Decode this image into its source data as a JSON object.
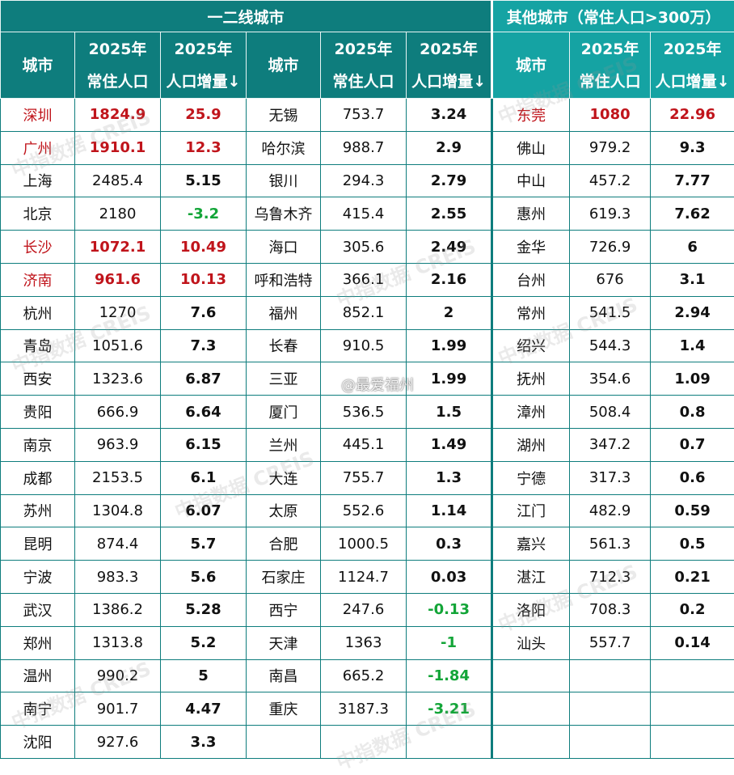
{
  "header": {
    "group_tier12": "一二线城市",
    "group_other": "其他城市（常住人口>300万）",
    "col_city": "城市",
    "col_pop_line1": "2025年",
    "col_pop_line2": "常住人口",
    "col_inc_line1": "2025年",
    "col_inc_line2": "人口增量↓"
  },
  "watermark": {
    "text": "中指数据 CREIS"
  },
  "weibo_tag": "@最爱福州",
  "tier12_col1": [
    {
      "city": "深圳",
      "pop": "1824.9",
      "inc": "25.9",
      "style": "red"
    },
    {
      "city": "广州",
      "pop": "1910.1",
      "inc": "12.3",
      "style": "red"
    },
    {
      "city": "上海",
      "pop": "2485.4",
      "inc": "5.15",
      "style": ""
    },
    {
      "city": "北京",
      "pop": "2180",
      "inc": "-3.2",
      "style": "neg"
    },
    {
      "city": "长沙",
      "pop": "1072.1",
      "inc": "10.49",
      "style": "red"
    },
    {
      "city": "济南",
      "pop": "961.6",
      "inc": "10.13",
      "style": "red"
    },
    {
      "city": "杭州",
      "pop": "1270",
      "inc": "7.6",
      "style": ""
    },
    {
      "city": "青岛",
      "pop": "1051.6",
      "inc": "7.3",
      "style": ""
    },
    {
      "city": "西安",
      "pop": "1323.6",
      "inc": "6.87",
      "style": ""
    },
    {
      "city": "贵阳",
      "pop": "666.9",
      "inc": "6.64",
      "style": ""
    },
    {
      "city": "南京",
      "pop": "963.9",
      "inc": "6.15",
      "style": ""
    },
    {
      "city": "成都",
      "pop": "2153.5",
      "inc": "6.1",
      "style": ""
    },
    {
      "city": "苏州",
      "pop": "1304.8",
      "inc": "6.07",
      "style": ""
    },
    {
      "city": "昆明",
      "pop": "874.4",
      "inc": "5.7",
      "style": ""
    },
    {
      "city": "宁波",
      "pop": "983.3",
      "inc": "5.6",
      "style": ""
    },
    {
      "city": "武汉",
      "pop": "1386.2",
      "inc": "5.28",
      "style": ""
    },
    {
      "city": "郑州",
      "pop": "1313.8",
      "inc": "5.2",
      "style": ""
    },
    {
      "city": "温州",
      "pop": "990.2",
      "inc": "5",
      "style": ""
    },
    {
      "city": "南宁",
      "pop": "901.7",
      "inc": "4.47",
      "style": ""
    },
    {
      "city": "沈阳",
      "pop": "927.6",
      "inc": "3.3",
      "style": ""
    }
  ],
  "tier12_col2": [
    {
      "city": "无锡",
      "pop": "753.7",
      "inc": "3.24",
      "style": ""
    },
    {
      "city": "哈尔滨",
      "pop": "988.7",
      "inc": "2.9",
      "style": ""
    },
    {
      "city": "银川",
      "pop": "294.3",
      "inc": "2.79",
      "style": ""
    },
    {
      "city": "乌鲁木齐",
      "pop": "415.4",
      "inc": "2.55",
      "style": ""
    },
    {
      "city": "海口",
      "pop": "305.6",
      "inc": "2.49",
      "style": ""
    },
    {
      "city": "呼和浩特",
      "pop": "366.1",
      "inc": "2.16",
      "style": ""
    },
    {
      "city": "福州",
      "pop": "852.1",
      "inc": "2",
      "style": ""
    },
    {
      "city": "长春",
      "pop": "910.5",
      "inc": "1.99",
      "style": ""
    },
    {
      "city": "三亚",
      "pop": "",
      "inc": "1.99",
      "style": ""
    },
    {
      "city": "厦门",
      "pop": "536.5",
      "inc": "1.5",
      "style": ""
    },
    {
      "city": "兰州",
      "pop": "445.1",
      "inc": "1.49",
      "style": ""
    },
    {
      "city": "大连",
      "pop": "755.7",
      "inc": "1.3",
      "style": ""
    },
    {
      "city": "太原",
      "pop": "552.6",
      "inc": "1.14",
      "style": ""
    },
    {
      "city": "合肥",
      "pop": "1000.5",
      "inc": "0.3",
      "style": ""
    },
    {
      "city": "石家庄",
      "pop": "1124.7",
      "inc": "0.03",
      "style": ""
    },
    {
      "city": "西宁",
      "pop": "247.6",
      "inc": "-0.13",
      "style": "neg"
    },
    {
      "city": "天津",
      "pop": "1363",
      "inc": "-1",
      "style": "neg"
    },
    {
      "city": "南昌",
      "pop": "665.2",
      "inc": "-1.84",
      "style": "neg"
    },
    {
      "city": "重庆",
      "pop": "3187.3",
      "inc": "-3.21",
      "style": "neg"
    },
    {
      "city": "",
      "pop": "",
      "inc": "",
      "style": ""
    }
  ],
  "other_col": [
    {
      "city": "东莞",
      "pop": "1080",
      "inc": "22.96",
      "style": "red"
    },
    {
      "city": "佛山",
      "pop": "979.2",
      "inc": "9.3",
      "style": ""
    },
    {
      "city": "中山",
      "pop": "457.2",
      "inc": "7.77",
      "style": ""
    },
    {
      "city": "惠州",
      "pop": "619.3",
      "inc": "7.62",
      "style": ""
    },
    {
      "city": "金华",
      "pop": "726.9",
      "inc": "6",
      "style": ""
    },
    {
      "city": "台州",
      "pop": "676",
      "inc": "3.1",
      "style": ""
    },
    {
      "city": "常州",
      "pop": "541.5",
      "inc": "2.94",
      "style": ""
    },
    {
      "city": "绍兴",
      "pop": "544.3",
      "inc": "1.4",
      "style": ""
    },
    {
      "city": "抚州",
      "pop": "354.6",
      "inc": "1.09",
      "style": ""
    },
    {
      "city": "漳州",
      "pop": "508.4",
      "inc": "0.8",
      "style": ""
    },
    {
      "city": "湖州",
      "pop": "347.2",
      "inc": "0.7",
      "style": ""
    },
    {
      "city": "宁德",
      "pop": "317.3",
      "inc": "0.6",
      "style": ""
    },
    {
      "city": "江门",
      "pop": "482.9",
      "inc": "0.59",
      "style": ""
    },
    {
      "city": "嘉兴",
      "pop": "561.3",
      "inc": "0.5",
      "style": ""
    },
    {
      "city": "湛江",
      "pop": "712.3",
      "inc": "0.21",
      "style": ""
    },
    {
      "city": "洛阳",
      "pop": "708.3",
      "inc": "0.2",
      "style": ""
    },
    {
      "city": "汕头",
      "pop": "557.7",
      "inc": "0.14",
      "style": ""
    },
    {
      "city": "",
      "pop": "",
      "inc": "",
      "style": ""
    },
    {
      "city": "",
      "pop": "",
      "inc": "",
      "style": ""
    },
    {
      "city": "",
      "pop": "",
      "inc": "",
      "style": ""
    }
  ],
  "colors": {
    "header_dark": "#0e7d7d",
    "header_light": "#15a3a3",
    "highlight_red": "#c0141b",
    "negative_green": "#13a538"
  }
}
